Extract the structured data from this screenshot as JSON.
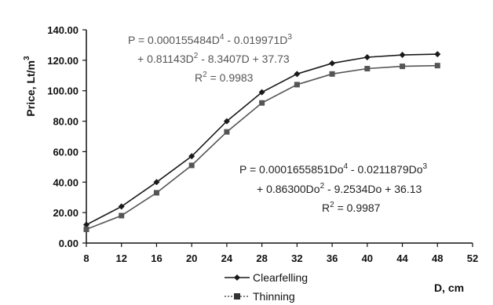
{
  "chart_data": {
    "type": "line",
    "xlabel": "D, cm",
    "ylabel": "Price, Lt/m",
    "ylabel_sup": "3",
    "xlim": [
      8,
      52
    ],
    "ylim": [
      0,
      140
    ],
    "x_ticks": [
      "8",
      "12",
      "16",
      "20",
      "24",
      "28",
      "32",
      "36",
      "40",
      "44",
      "48",
      "52"
    ],
    "y_ticks": [
      "0.00",
      "20.00",
      "40.00",
      "60.00",
      "80.00",
      "100.00",
      "120.00",
      "140.00"
    ],
    "x": [
      8,
      12,
      16,
      20,
      24,
      28,
      32,
      36,
      40,
      44,
      48
    ],
    "series": [
      {
        "name": "Clearfelling",
        "color": "#1a1a1a",
        "marker": "diamond",
        "values": [
          12,
          24,
          40,
          57,
          80,
          99,
          111,
          118,
          122,
          123.5,
          124
        ]
      },
      {
        "name": "Thinning",
        "color": "#555555",
        "marker": "square",
        "values": [
          9,
          18,
          33,
          51,
          73,
          92,
          104,
          111,
          114.5,
          116,
          116.5
        ]
      }
    ],
    "annotations": {
      "clearfelling_eq_line1": "P = 0.000155484D",
      "clearfelling_eq_exp1": "4",
      "clearfelling_eq_line1b": " - 0.019971D",
      "clearfelling_eq_exp1b": "3",
      "clearfelling_eq_line2": "+ 0.81143D",
      "clearfelling_eq_exp2": "2",
      "clearfelling_eq_line2b": " - 8.3407D + 37.73",
      "clearfelling_r2_label": "R",
      "clearfelling_r2_exp": "2",
      "clearfelling_r2_value": " = 0.9983",
      "thinning_eq_line1": "P = 0.0001655851Do",
      "thinning_eq_exp1": "4",
      "thinning_eq_line1b": " - 0.0211879Do",
      "thinning_eq_exp1b": "3",
      "thinning_eq_line2": "+ 0.86300Do",
      "thinning_eq_exp2": "2",
      "thinning_eq_line2b": " - 9.2534Do + 36.13",
      "thinning_r2_label": "R",
      "thinning_r2_exp": "2",
      "thinning_r2_value": " = 0.9987"
    },
    "grid": false,
    "legend_position": "bottom-center"
  }
}
